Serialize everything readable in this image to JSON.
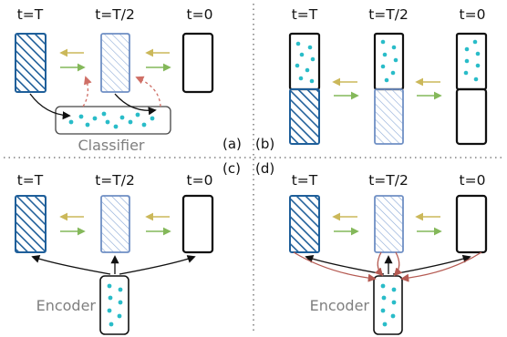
{
  "timesteps": [
    "t=T",
    "t=T/2",
    "t=0"
  ],
  "panel_labels": {
    "a": "(a)",
    "b": "(b)",
    "c": "(c)",
    "d": "(d)"
  },
  "module_labels": {
    "classifier": "Classifier",
    "encoder": "Encoder"
  },
  "colors": {
    "noisy_fill": "#2f83c4",
    "noisy_stroke": "#1f5f9a",
    "mid_fill": "#b9cde9",
    "mid_stroke": "#6f8fc4",
    "clean_stroke": "#111111",
    "dots": "#29bcc8",
    "arrow_forward": "#84b85a",
    "arrow_reverse": "#cbb85a",
    "guidance_dashed": "#cf6f66",
    "guidance_solid": "#b55a52",
    "separator": "#666666"
  }
}
